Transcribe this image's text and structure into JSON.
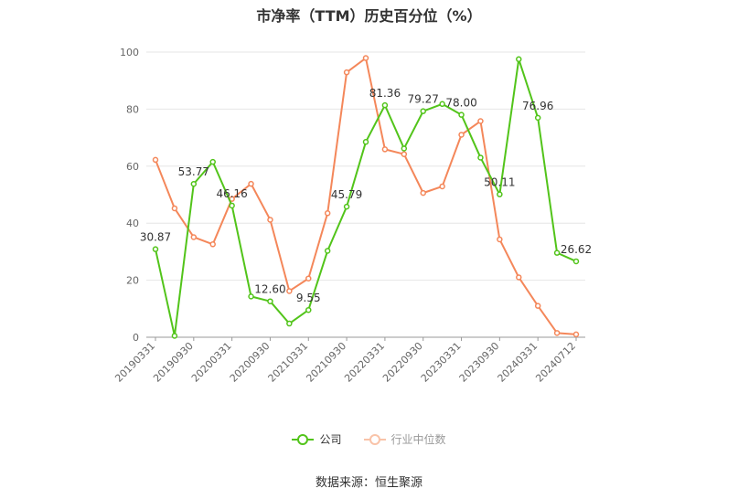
{
  "chart_data": {
    "type": "line",
    "title": "市净率（TTM）历史百分位（%）",
    "ylim": [
      0,
      100
    ],
    "yticks": [
      0,
      20,
      40,
      60,
      80,
      100
    ],
    "grid": true,
    "legend_position": "bottom",
    "tick_labels": [
      "20190331",
      "20190930",
      "20200331",
      "20200930",
      "20210331",
      "20210930",
      "20220331",
      "20220930",
      "20230331",
      "20230930",
      "20240331",
      "20240712"
    ],
    "series": [
      {
        "name": "公司",
        "color": "#52c41a",
        "values": [
          30.87,
          0.5,
          53.77,
          61.5,
          46.16,
          14.3,
          12.6,
          4.8,
          9.55,
          30.3,
          45.79,
          68.5,
          81.36,
          66.2,
          79.27,
          81.8,
          78.0,
          63.0,
          50.11,
          97.5,
          76.96,
          29.6,
          26.62
        ],
        "labels": [
          "30.87",
          "",
          "53.77",
          "",
          "46.16",
          "",
          "12.60",
          "",
          "9.55",
          "",
          "45.79",
          "",
          "81.36",
          "",
          "79.27",
          "",
          "78.00",
          "",
          "50.11",
          "",
          "76.96",
          "",
          "26.62"
        ]
      },
      {
        "name": "行业中位数",
        "color": "#f4875a",
        "values": [
          62.2,
          45.2,
          35.1,
          32.6,
          48.5,
          53.8,
          41.2,
          16.2,
          20.6,
          43.5,
          92.9,
          97.9,
          65.9,
          64.2,
          50.6,
          52.9,
          71.0,
          75.8,
          34.3,
          21.0,
          11.0,
          1.5,
          1.0
        ]
      }
    ]
  },
  "source": "数据来源：恒生聚源"
}
